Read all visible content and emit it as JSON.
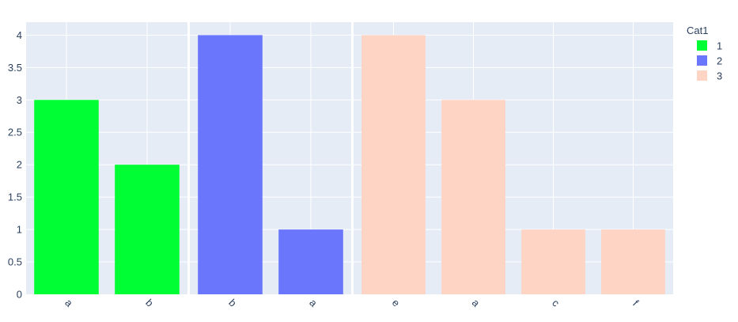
{
  "chart_data": {
    "type": "bar",
    "title": "",
    "xlabel": "",
    "ylabel": "",
    "ylim": [
      0,
      4.2
    ],
    "y_ticks": [
      "0",
      "0.5",
      "1",
      "1.5",
      "2",
      "2.5",
      "3",
      "3.5",
      "4"
    ],
    "grid": true,
    "legend": {
      "title": "Cat1",
      "placement": "top-right",
      "entries": [
        {
          "label": "1",
          "color": "#00fe35"
        },
        {
          "label": "2",
          "color": "#6a76fc"
        },
        {
          "label": "3",
          "color": "#fed4c4"
        }
      ]
    },
    "facets": [
      {
        "cat1": "1",
        "color": "#00fe35",
        "categories": [
          "a",
          "b"
        ],
        "values": [
          3,
          2
        ]
      },
      {
        "cat1": "2",
        "color": "#6a76fc",
        "categories": [
          "b",
          "a"
        ],
        "values": [
          4,
          1
        ]
      },
      {
        "cat1": "3",
        "color": "#fed4c4",
        "categories": [
          "e",
          "a",
          "c",
          "f"
        ],
        "values": [
          4,
          3,
          1,
          1
        ]
      }
    ],
    "colors": {
      "plot_background": "#e5ecf6",
      "grid": "#ffffff",
      "text": "#2a3f5f"
    }
  }
}
